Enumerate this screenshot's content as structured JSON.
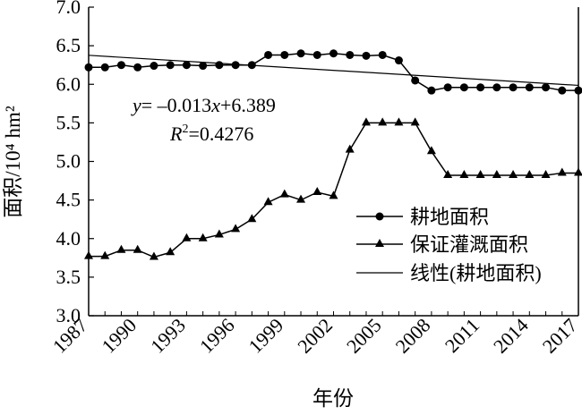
{
  "chart_data": {
    "type": "line",
    "title": "",
    "xlabel": "年份",
    "ylabel": "面积/10⁴ hm²",
    "ylim": [
      3.0,
      7.0
    ],
    "yticks": [
      "3.0",
      "3.5",
      "4.0",
      "4.5",
      "5.0",
      "5.5",
      "6.0",
      "6.5",
      "7.0"
    ],
    "xlim": [
      1987,
      2017
    ],
    "xticks": [
      "1987",
      "1990",
      "1993",
      "1996",
      "1999",
      "2002",
      "2005",
      "2008",
      "2011",
      "2014",
      "2017"
    ],
    "x": [
      1987,
      1988,
      1989,
      1990,
      1991,
      1992,
      1993,
      1994,
      1995,
      1996,
      1997,
      1998,
      1999,
      2000,
      2001,
      2002,
      2003,
      2004,
      2005,
      2006,
      2007,
      2008,
      2009,
      2010,
      2011,
      2012,
      2013,
      2014,
      2015,
      2016,
      2017
    ],
    "series": [
      {
        "name": "耕地面积",
        "marker": "circle",
        "values": [
          6.22,
          6.22,
          6.25,
          6.22,
          6.24,
          6.25,
          6.25,
          6.24,
          6.25,
          6.25,
          6.25,
          6.38,
          6.38,
          6.4,
          6.38,
          6.4,
          6.38,
          6.37,
          6.38,
          6.31,
          6.05,
          5.92,
          5.96,
          5.96,
          5.96,
          5.96,
          5.96,
          5.96,
          5.96,
          5.92,
          5.92
        ]
      },
      {
        "name": "保证灌溉面积",
        "marker": "triangle",
        "values": [
          3.77,
          3.77,
          3.85,
          3.85,
          3.76,
          3.82,
          4.0,
          4.0,
          4.05,
          4.12,
          4.25,
          4.47,
          4.57,
          4.5,
          4.6,
          4.55,
          5.15,
          5.5,
          5.5,
          5.5,
          5.5,
          5.13,
          4.82,
          4.82,
          4.82,
          4.82,
          4.82,
          4.82,
          4.82,
          4.85,
          4.85
        ]
      },
      {
        "name": "线性(耕地面积)",
        "marker": "none",
        "trendline": {
          "slope": -0.013,
          "intercept": 6.389
        }
      }
    ],
    "annotations": {
      "equation_y": "y",
      "equation_rest": "= –0.013",
      "equation_x": "x",
      "equation_const": "+6.389",
      "r2_r": "R",
      "r2_sup": "2",
      "r2_value": "=0.4276"
    },
    "grid": false,
    "legend_position": "bottom-right"
  }
}
